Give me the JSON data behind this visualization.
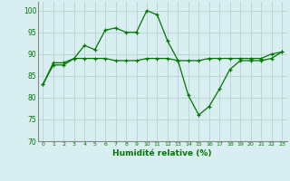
{
  "title": "",
  "xlabel": "Humidité relative (%)",
  "ylabel": "",
  "background_color": "#d8eef0",
  "grid_color": "#b0cccc",
  "line_color": "#007700",
  "ylim": [
    70,
    102
  ],
  "xlim": [
    -0.5,
    23.5
  ],
  "yticks": [
    70,
    75,
    80,
    85,
    90,
    95,
    100
  ],
  "xticks": [
    0,
    1,
    2,
    3,
    4,
    5,
    6,
    7,
    8,
    9,
    10,
    11,
    12,
    13,
    14,
    15,
    16,
    17,
    18,
    19,
    20,
    21,
    22,
    23
  ],
  "line1": [
    83,
    87.5,
    87.5,
    89,
    92,
    91,
    95.5,
    96,
    95,
    95,
    100,
    99,
    93,
    88.5,
    80.5,
    76,
    78,
    82,
    86.5,
    88.5,
    88.5,
    88.5,
    89,
    90.5
  ],
  "line2": [
    83,
    88,
    88,
    89,
    89,
    89,
    89,
    88.5,
    88.5,
    88.5,
    89,
    89,
    89,
    88.5,
    88.5,
    88.5,
    89,
    89,
    89,
    89,
    89,
    89,
    90,
    90.5
  ]
}
